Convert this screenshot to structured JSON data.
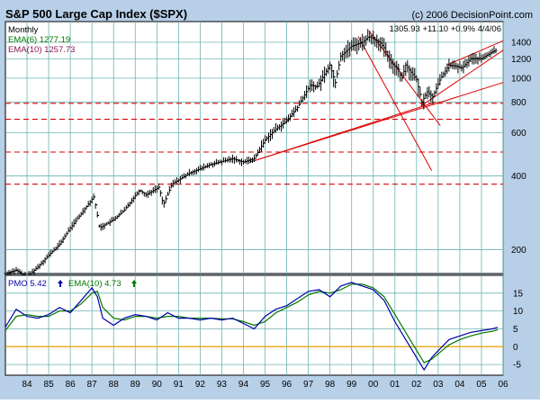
{
  "title": "S&P 500 Large Cap Index ($SPX)",
  "copyright": "(c) 2006 DecisionPoint.com",
  "period": "Monthly",
  "ema_short": {
    "label": "EMA(6) 1277.19",
    "color": "#007700"
  },
  "ema_long": {
    "label": "EMA(10) 1257.73",
    "color": "#8b1a5a"
  },
  "last_quote": "1305.93  +11.10  +0.9%  4/4/06",
  "pmo_panel": {
    "pmo_label": "PMO  5.42",
    "pmo_color": "#0000aa",
    "ema_label": "EMA(10)  4.73",
    "ema_color": "#007700",
    "up_arrow": "up-arrow-icon"
  },
  "colors": {
    "frame": "#b8cfe8",
    "grid": "#6bb3b3",
    "trend": "#dd0000",
    "zero": "#e8a000"
  },
  "chart_data": [
    {
      "type": "candlestick",
      "title": "S&P 500 Large Cap Index ($SPX)",
      "scale": "log",
      "ylim": [
        160,
        1700
      ],
      "xlim": [
        1983.5,
        2006.5
      ],
      "yticks": [
        200,
        400,
        600,
        800,
        1000,
        1200,
        1400
      ],
      "xticks": [
        "84",
        "85",
        "86",
        "87",
        "88",
        "89",
        "90",
        "91",
        "92",
        "93",
        "94",
        "95",
        "96",
        "97",
        "98",
        "99",
        "00",
        "01",
        "02",
        "03",
        "04",
        "05",
        "06"
      ],
      "grid": true,
      "price_anchors": [
        [
          1983.5,
          160
        ],
        [
          1984.0,
          165
        ],
        [
          1984.5,
          155
        ],
        [
          1985.0,
          170
        ],
        [
          1985.5,
          190
        ],
        [
          1986.0,
          210
        ],
        [
          1986.5,
          245
        ],
        [
          1987.0,
          280
        ],
        [
          1987.6,
          330
        ],
        [
          1987.85,
          245
        ],
        [
          1988.5,
          265
        ],
        [
          1989.0,
          290
        ],
        [
          1989.7,
          350
        ],
        [
          1990.0,
          335
        ],
        [
          1990.6,
          360
        ],
        [
          1990.8,
          305
        ],
        [
          1991.2,
          370
        ],
        [
          1992.0,
          410
        ],
        [
          1993.0,
          445
        ],
        [
          1994.0,
          470
        ],
        [
          1994.5,
          455
        ],
        [
          1995.0,
          470
        ],
        [
          1995.5,
          560
        ],
        [
          1996.0,
          620
        ],
        [
          1996.5,
          670
        ],
        [
          1997.0,
          760
        ],
        [
          1997.6,
          940
        ],
        [
          1997.9,
          920
        ],
        [
          1998.5,
          1130
        ],
        [
          1998.75,
          960
        ],
        [
          1999.0,
          1230
        ],
        [
          1999.5,
          1350
        ],
        [
          2000.0,
          1400
        ],
        [
          2000.3,
          1480
        ],
        [
          2000.8,
          1400
        ],
        [
          2001.0,
          1330
        ],
        [
          2001.3,
          1160
        ],
        [
          2001.7,
          1080
        ],
        [
          2001.8,
          980
        ],
        [
          2002.0,
          1130
        ],
        [
          2002.5,
          990
        ],
        [
          2002.75,
          800
        ],
        [
          2003.0,
          880
        ],
        [
          2003.25,
          840
        ],
        [
          2003.6,
          990
        ],
        [
          2004.0,
          1130
        ],
        [
          2004.3,
          1120
        ],
        [
          2004.6,
          1100
        ],
        [
          2005.0,
          1200
        ],
        [
          2005.5,
          1200
        ],
        [
          2006.0,
          1280
        ],
        [
          2006.25,
          1305
        ]
      ],
      "ema6_last": 1277.19,
      "ema10_last": 1257.73,
      "horizontal_lines": [
        790,
        680,
        500,
        370
      ],
      "trendlines": [
        {
          "from": [
            1994.8,
            455
          ],
          "to": [
            2003.4,
            800
          ]
        },
        {
          "from": [
            1994.8,
            455
          ],
          "to": [
            2006.5,
            960
          ]
        },
        {
          "from": [
            1999.8,
            1480
          ],
          "to": [
            2003.2,
            420
          ]
        },
        {
          "from": [
            2000.3,
            1560
          ],
          "to": [
            2003.6,
            640
          ]
        },
        {
          "from": [
            2002.7,
            770
          ],
          "to": [
            2006.5,
            1300
          ]
        },
        {
          "from": [
            2003.9,
            1130
          ],
          "to": [
            2006.5,
            1420
          ]
        }
      ]
    },
    {
      "type": "line",
      "title": "PMO",
      "ylim": [
        -8,
        20
      ],
      "yticks": [
        -5,
        0,
        5,
        10,
        15
      ],
      "series": [
        {
          "name": "PMO",
          "color": "#0000aa",
          "x": [
            1983.5,
            1984.0,
            1984.5,
            1985.0,
            1985.5,
            1986.0,
            1986.5,
            1987.0,
            1987.5,
            1987.75,
            1988.0,
            1988.5,
            1989.0,
            1989.5,
            1990.0,
            1990.5,
            1991.0,
            1991.5,
            1992.0,
            1992.5,
            1993.0,
            1993.5,
            1994.0,
            1994.5,
            1995.0,
            1995.5,
            1996.0,
            1996.5,
            1997.0,
            1997.5,
            1998.0,
            1998.5,
            1999.0,
            1999.5,
            2000.0,
            2000.5,
            2001.0,
            2001.5,
            2002.0,
            2002.5,
            2002.85,
            2003.2,
            2003.6,
            2004.0,
            2004.5,
            2005.0,
            2005.5,
            2006.0,
            2006.25
          ],
          "values": [
            5.5,
            10.5,
            8.5,
            8,
            9,
            11,
            9.5,
            13,
            16.5,
            14,
            8,
            6,
            8,
            9,
            8.5,
            7.5,
            9.5,
            8,
            8,
            7.5,
            8,
            7.5,
            8,
            6.5,
            5,
            8.5,
            10.5,
            11.5,
            13.5,
            15.5,
            16,
            14,
            17,
            18,
            17,
            16,
            13,
            7,
            2,
            -3,
            -6.5,
            -3,
            -0.5,
            2,
            3,
            4,
            4.5,
            5,
            5.42
          ]
        },
        {
          "name": "EMA(10)",
          "color": "#007700",
          "x": [
            1983.5,
            1984.0,
            1984.5,
            1985.0,
            1985.5,
            1986.0,
            1986.5,
            1987.0,
            1987.5,
            1987.75,
            1988.0,
            1988.5,
            1989.0,
            1989.5,
            1990.0,
            1990.5,
            1991.0,
            1991.5,
            1992.0,
            1992.5,
            1993.0,
            1993.5,
            1994.0,
            1994.5,
            1995.0,
            1995.5,
            1996.0,
            1996.5,
            1997.0,
            1997.5,
            1998.0,
            1998.5,
            1999.0,
            1999.5,
            2000.0,
            2000.5,
            2001.0,
            2001.5,
            2002.0,
            2002.5,
            2002.85,
            2003.2,
            2003.6,
            2004.0,
            2004.5,
            2005.0,
            2005.5,
            2006.0,
            2006.25
          ],
          "values": [
            4.5,
            8.5,
            9,
            8.5,
            8.5,
            10,
            10,
            12,
            15,
            15.5,
            11,
            8,
            7.5,
            8.5,
            8.5,
            8,
            8.5,
            8.5,
            8,
            8,
            8,
            7.8,
            7.8,
            7,
            6,
            7,
            9.5,
            11,
            12.5,
            14.5,
            15.5,
            15,
            16,
            17.5,
            17.5,
            16.5,
            14,
            9,
            4,
            -1,
            -4.5,
            -3.5,
            -1.5,
            0.5,
            2,
            3,
            3.8,
            4.3,
            4.73
          ]
        }
      ]
    }
  ]
}
